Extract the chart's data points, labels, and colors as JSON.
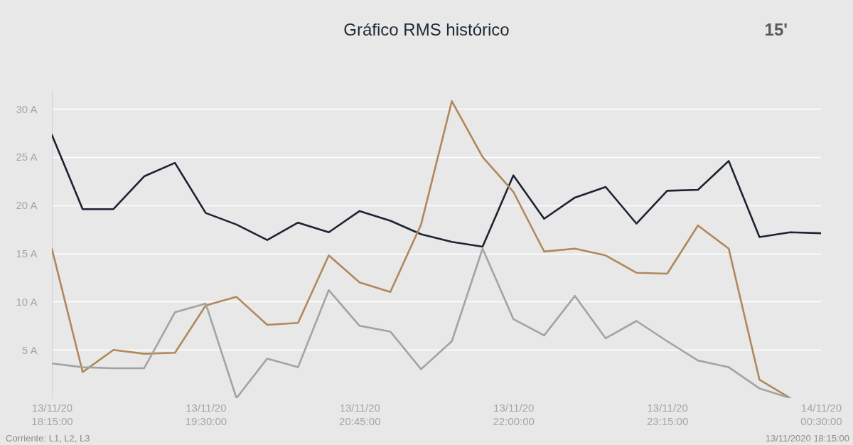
{
  "chart_data": {
    "type": "line",
    "title": "Gráfico RMS histórico",
    "annotations": [
      "15'",
      "Corriente: L1, L2, L3",
      "13/11/2020 18:15:00"
    ],
    "x": [
      "2020-11-13T18:15",
      "2020-11-13T18:30",
      "2020-11-13T18:45",
      "2020-11-13T19:00",
      "2020-11-13T19:15",
      "2020-11-13T19:30",
      "2020-11-13T19:45",
      "2020-11-13T20:00",
      "2020-11-13T20:15",
      "2020-11-13T20:30",
      "2020-11-13T20:45",
      "2020-11-13T21:00",
      "2020-11-13T21:15",
      "2020-11-13T21:30",
      "2020-11-13T21:45",
      "2020-11-13T22:00",
      "2020-11-13T22:15",
      "2020-11-13T22:30",
      "2020-11-13T22:45",
      "2020-11-13T23:00",
      "2020-11-13T23:15",
      "2020-11-13T23:30",
      "2020-11-13T23:45",
      "2020-11-14T00:00",
      "2020-11-14T00:15",
      "2020-11-14T00:30"
    ],
    "series": [
      {
        "color": "#1c2331",
        "values": [
          27.3,
          19.6,
          19.6,
          23.0,
          24.4,
          19.2,
          18.0,
          16.4,
          18.2,
          17.2,
          19.4,
          18.4,
          17.0,
          16.2,
          15.7,
          23.1,
          18.6,
          20.8,
          21.9,
          18.1,
          21.5,
          21.6,
          24.6,
          16.7,
          17.2,
          17.1
        ]
      },
      {
        "color": "#b0885a",
        "values": [
          15.5,
          2.7,
          5.0,
          4.6,
          4.7,
          9.6,
          10.5,
          7.6,
          7.8,
          14.8,
          12.0,
          11.0,
          18.0,
          30.8,
          25.0,
          21.4,
          15.2,
          15.5,
          14.8,
          13.0,
          12.9,
          17.9,
          15.5,
          1.9,
          0,
          null
        ]
      },
      {
        "color": "#a3a3a3",
        "values": [
          3.6,
          3.2,
          3.1,
          3.1,
          8.9,
          9.8,
          0,
          4.1,
          3.2,
          11.2,
          7.5,
          6.9,
          3.0,
          5.9,
          15.5,
          8.2,
          6.5,
          10.6,
          6.2,
          8.0,
          5.9,
          3.9,
          3.2,
          1.0,
          0,
          null
        ]
      }
    ],
    "xlim": [
      "2020-11-13T18:15",
      "2020-11-14T00:30"
    ],
    "xticks": [
      {
        "value": "2020-11-13T18:15",
        "label": "13/11/20 18:15:00"
      },
      {
        "value": "2020-11-13T19:30",
        "label": "13/11/20 19:30:00"
      },
      {
        "value": "2020-11-13T20:45",
        "label": "13/11/20 20:45:00"
      },
      {
        "value": "2020-11-13T22:00",
        "label": "13/11/20 22:00:00"
      },
      {
        "value": "2020-11-13T23:15",
        "label": "13/11/20 23:15:00"
      },
      {
        "value": "2020-11-14T00:30",
        "label": "14/11/20 00:30:00"
      }
    ],
    "ylim": [
      0,
      32
    ],
    "yticks": [
      {
        "value": 5,
        "label": "5 A"
      },
      {
        "value": 10,
        "label": "10 A"
      },
      {
        "value": 15,
        "label": "15 A"
      },
      {
        "value": 20,
        "label": "20 A"
      },
      {
        "value": 25,
        "label": "25 A"
      },
      {
        "value": 30,
        "label": "30 A"
      }
    ],
    "grid": "y",
    "line_style": "solid"
  }
}
